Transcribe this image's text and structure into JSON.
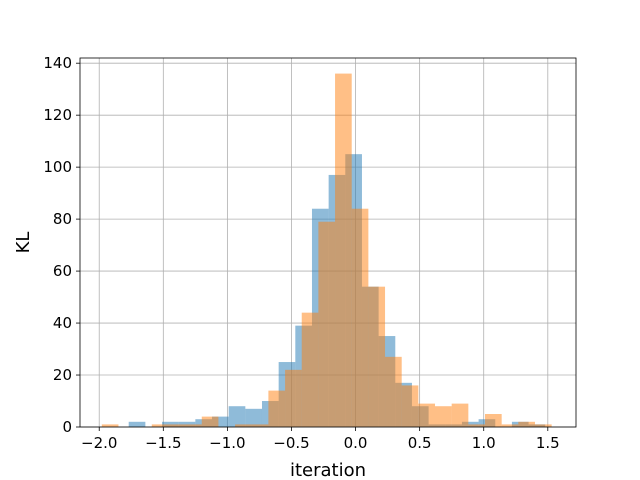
{
  "chart_data": {
    "type": "bar",
    "title": "",
    "xlabel": "iteration",
    "ylabel": "KL",
    "xlim": [
      -2.15,
      1.72
    ],
    "ylim": [
      0,
      142
    ],
    "xticks": [
      -2.0,
      -1.5,
      -1.0,
      -0.5,
      0.0,
      0.5,
      1.0,
      1.5
    ],
    "xtick_labels": [
      "−2.0",
      "−1.5",
      "−1.0",
      "−0.5",
      "0.0",
      "0.5",
      "1.0",
      "1.5"
    ],
    "yticks": [
      0,
      20,
      40,
      60,
      80,
      100,
      120,
      140
    ],
    "ytick_labels": [
      "0",
      "20",
      "40",
      "60",
      "80",
      "100",
      "120",
      "140"
    ],
    "grid": true,
    "legend": false,
    "series": [
      {
        "color": "#1f77b4",
        "opacity": 0.5,
        "bins": [
          [
            -1.77,
            -1.64,
            2
          ],
          [
            -1.51,
            -1.38,
            2
          ],
          [
            -1.38,
            -1.25,
            2
          ],
          [
            -1.25,
            -1.12,
            3
          ],
          [
            -1.12,
            -0.99,
            4
          ],
          [
            -0.99,
            -0.86,
            8
          ],
          [
            -0.86,
            -0.73,
            7
          ],
          [
            -0.73,
            -0.6,
            10
          ],
          [
            -0.6,
            -0.47,
            25
          ],
          [
            -0.47,
            -0.34,
            39
          ],
          [
            -0.34,
            -0.21,
            84
          ],
          [
            -0.21,
            -0.08,
            97
          ],
          [
            -0.08,
            0.05,
            105
          ],
          [
            0.05,
            0.18,
            54
          ],
          [
            0.18,
            0.31,
            35
          ],
          [
            0.31,
            0.44,
            17
          ],
          [
            0.44,
            0.57,
            8
          ],
          [
            0.57,
            0.7,
            1
          ],
          [
            0.7,
            0.83,
            1
          ],
          [
            0.83,
            0.96,
            2
          ],
          [
            0.96,
            1.09,
            3
          ],
          [
            1.22,
            1.35,
            2
          ],
          [
            1.35,
            1.48,
            1
          ]
        ]
      },
      {
        "color": "#ff7f0e",
        "opacity": 0.5,
        "bins": [
          [
            -1.98,
            -1.85,
            1
          ],
          [
            -1.59,
            -1.46,
            1
          ],
          [
            -1.46,
            -1.33,
            1
          ],
          [
            -1.33,
            -1.2,
            1
          ],
          [
            -1.2,
            -1.07,
            4
          ],
          [
            -0.94,
            -0.81,
            1
          ],
          [
            -0.81,
            -0.68,
            1
          ],
          [
            -0.68,
            -0.55,
            14
          ],
          [
            -0.55,
            -0.42,
            22
          ],
          [
            -0.42,
            -0.29,
            44
          ],
          [
            -0.29,
            -0.16,
            79
          ],
          [
            -0.16,
            -0.03,
            136
          ],
          [
            -0.03,
            0.1,
            84
          ],
          [
            0.1,
            0.23,
            54
          ],
          [
            0.23,
            0.36,
            27
          ],
          [
            0.36,
            0.49,
            16
          ],
          [
            0.49,
            0.62,
            9
          ],
          [
            0.62,
            0.75,
            8
          ],
          [
            0.75,
            0.88,
            9
          ],
          [
            0.88,
            1.01,
            1
          ],
          [
            1.01,
            1.14,
            5
          ],
          [
            1.14,
            1.27,
            1
          ],
          [
            1.27,
            1.4,
            2
          ],
          [
            1.4,
            1.53,
            1
          ]
        ]
      }
    ]
  }
}
